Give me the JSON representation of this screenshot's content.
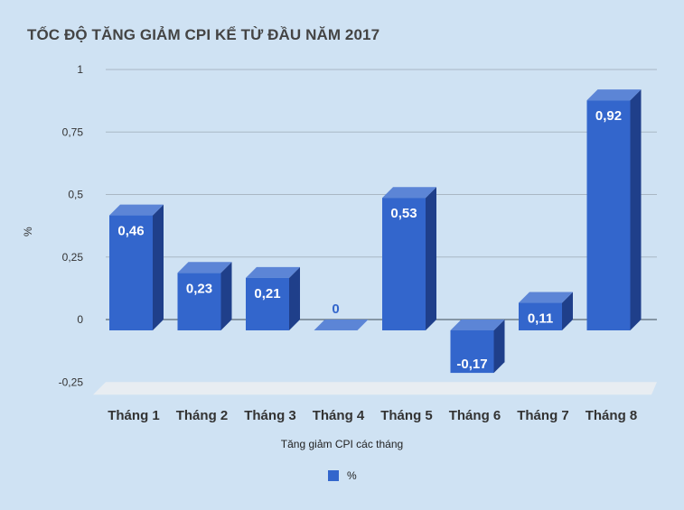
{
  "chart_data": {
    "type": "bar",
    "title": "TỐC ĐỘ TĂNG GIẢM CPI KỂ TỪ ĐẦU NĂM 2017",
    "xlabel": "Tăng giảm CPI các tháng",
    "ylabel": "%",
    "categories": [
      "Tháng 1",
      "Tháng 2",
      "Tháng 3",
      "Tháng 4",
      "Tháng 5",
      "Tháng 6",
      "Tháng 7",
      "Tháng 8"
    ],
    "series": [
      {
        "name": "%",
        "values": [
          0.46,
          0.23,
          0.21,
          0,
          0.53,
          -0.17,
          0.11,
          0.92
        ],
        "data_labels": [
          "0,46",
          "0,23",
          "0,21",
          "0",
          "0,53",
          "-0,17",
          "0,11",
          "0,92"
        ]
      }
    ],
    "ylim": [
      -0.25,
      1
    ],
    "y_ticks": [
      -0.25,
      0,
      0.25,
      0.5,
      0.75,
      1
    ],
    "y_tick_labels": [
      "-0,25",
      "0",
      "0,25",
      "0,5",
      "0,75",
      "1"
    ],
    "grid": true,
    "style": "3d",
    "legend_position": "bottom",
    "colors": {
      "bar_front": "#3366cc",
      "bar_top": "#5c85d6",
      "bar_side": "#1f3f8a",
      "floor": "#e8edf2",
      "grid": "#a9b7c4",
      "label_on_bar": "#ffffff",
      "label_zero": "#3366cc",
      "background": "#cfe2f3"
    }
  }
}
